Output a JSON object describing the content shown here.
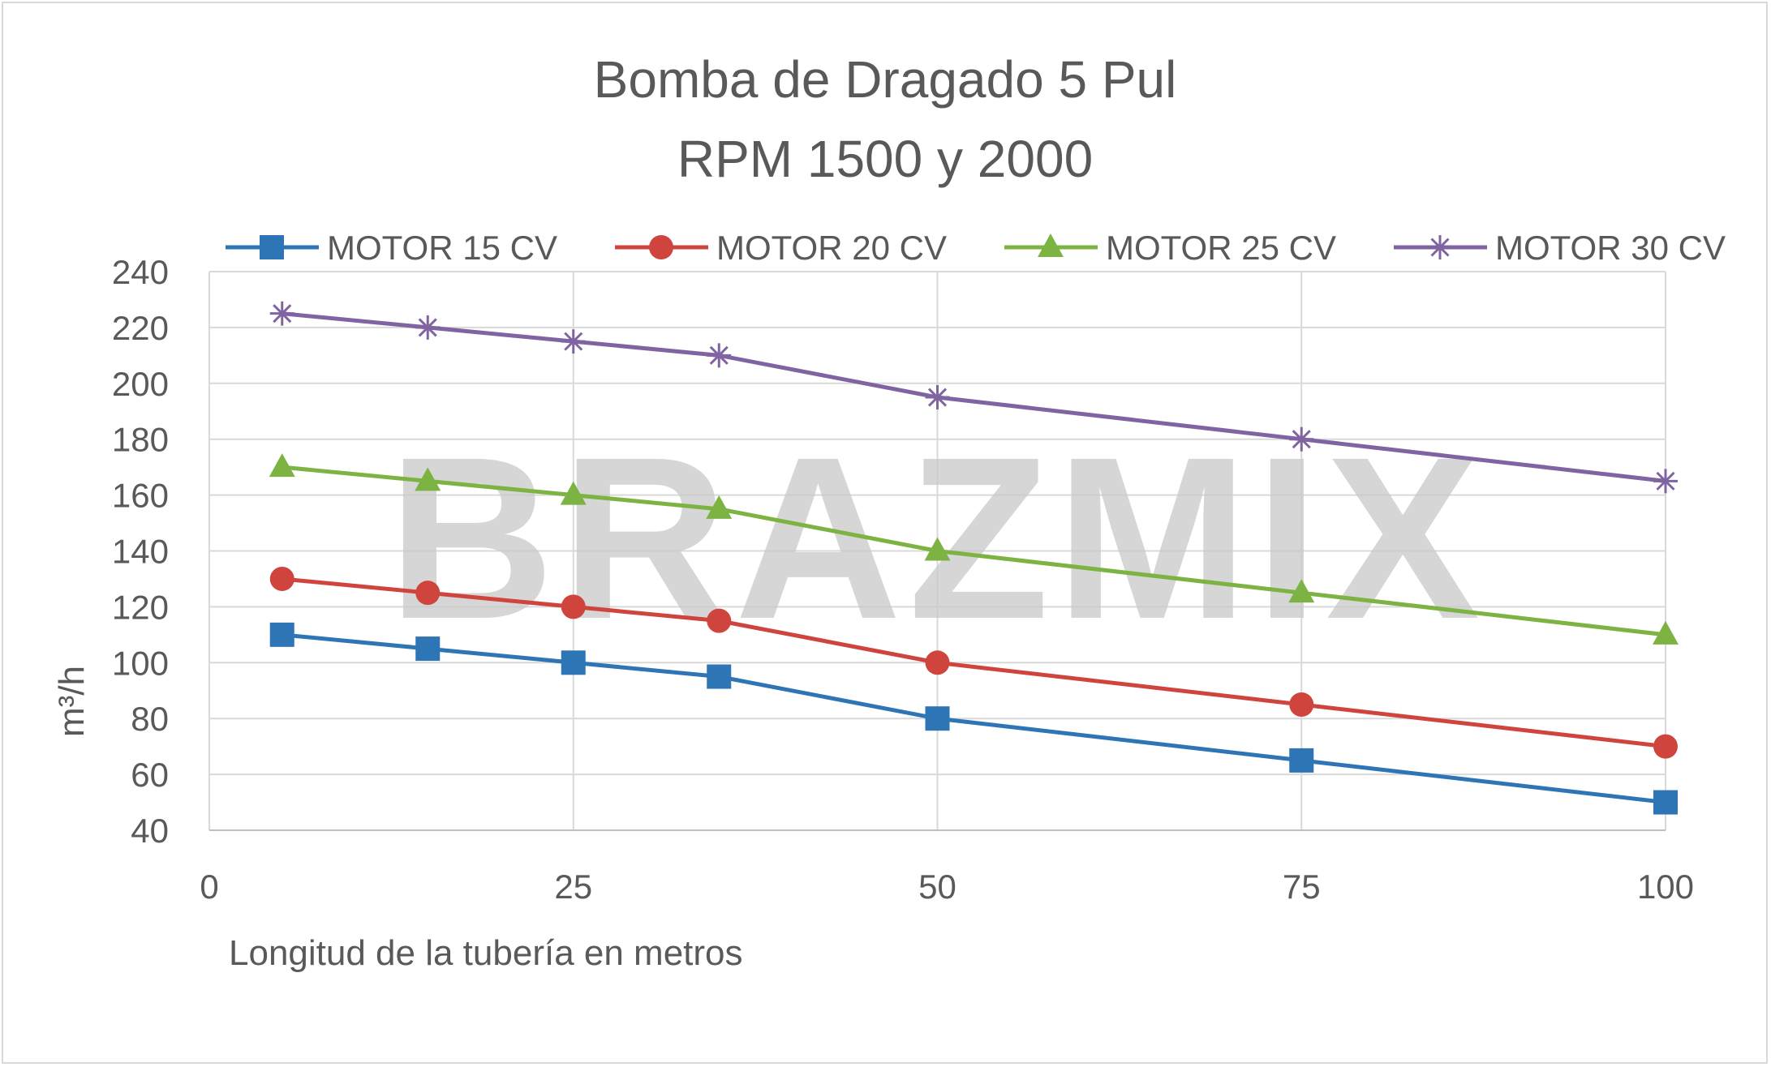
{
  "chart_data": {
    "type": "line",
    "title": [
      "Bomba de Dragado 5 Pul",
      "RPM 1500 y 2000"
    ],
    "xlabel": "Longitud de la tubería en metros",
    "ylabel": "m³/h",
    "xlim": [
      0,
      100
    ],
    "ylim": [
      40,
      240
    ],
    "xticks": [
      0,
      25,
      50,
      75,
      100
    ],
    "yticks": [
      40,
      60,
      80,
      100,
      120,
      140,
      160,
      180,
      200,
      220,
      240
    ],
    "grid": true,
    "legend_position": "top",
    "watermark": "BRAZMIX",
    "x": [
      5,
      15,
      25,
      35,
      50,
      75,
      100
    ],
    "series": [
      {
        "name": "MOTOR 15 CV",
        "color": "#2e75b6",
        "marker": "square",
        "values": [
          110,
          105,
          100,
          95,
          80,
          65,
          50
        ]
      },
      {
        "name": "MOTOR 20 CV",
        "color": "#d0443e",
        "marker": "circle",
        "values": [
          130,
          125,
          120,
          115,
          100,
          85,
          70
        ]
      },
      {
        "name": "MOTOR 25 CV",
        "color": "#7cb342",
        "marker": "triangle",
        "values": [
          170,
          165,
          160,
          155,
          140,
          125,
          110
        ]
      },
      {
        "name": "MOTOR 30 CV",
        "color": "#8064a2",
        "marker": "star",
        "values": [
          225,
          220,
          215,
          210,
          195,
          180,
          165
        ]
      }
    ]
  }
}
